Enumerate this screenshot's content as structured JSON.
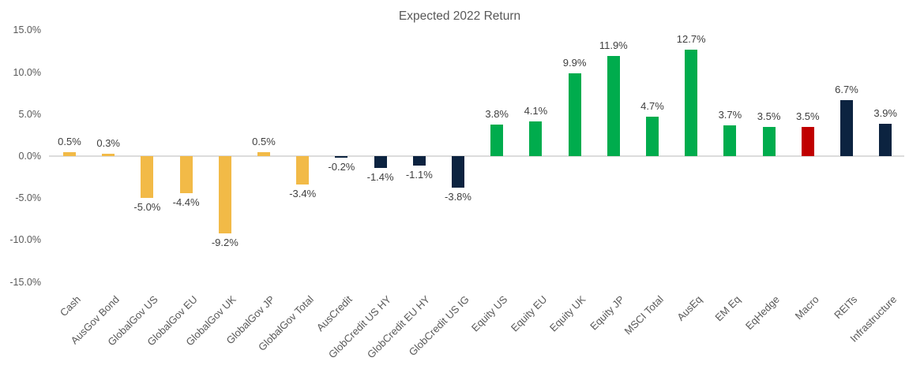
{
  "title": "Expected 2022 Return",
  "chart_data": {
    "type": "bar",
    "title": "Expected 2022 Return",
    "categories": [
      "Cash",
      "AusGov Bond",
      "GlobalGov US",
      "GlobalGov EU",
      "GlobalGov UK",
      "GlobalGov JP",
      "GlobalGov Total",
      "AusCredit",
      "GlobCredit US HY",
      "GlobCredit EU HY",
      "GlobCredit US IG",
      "Equity US",
      "Equity EU",
      "Equity UK",
      "Equity JP",
      "MSCI Total",
      "AusEq",
      "EM Eq",
      "EqHedge",
      "Macro",
      "REITs",
      "Infrastructure"
    ],
    "values": [
      0.5,
      0.3,
      -5.0,
      -4.4,
      -9.2,
      0.5,
      -3.4,
      -0.2,
      -1.4,
      -1.1,
      -3.8,
      3.8,
      4.1,
      9.9,
      11.9,
      4.7,
      12.7,
      3.7,
      3.5,
      3.5,
      6.7,
      3.9
    ],
    "value_labels": [
      "0.5%",
      "0.3%",
      "-5.0%",
      "-4.4%",
      "-9.2%",
      "0.5%",
      "-3.4%",
      "-0.2%",
      "-1.4%",
      "-1.1%",
      "-3.8%",
      "3.8%",
      "4.1%",
      "9.9%",
      "11.9%",
      "4.7%",
      "12.7%",
      "3.7%",
      "3.5%",
      "3.5%",
      "6.7%",
      "3.9%"
    ],
    "bar_colors": [
      "#F2BA47",
      "#F2BA47",
      "#F2BA47",
      "#F2BA47",
      "#F2BA47",
      "#F2BA47",
      "#F2BA47",
      "#0C2340",
      "#0C2340",
      "#0C2340",
      "#0C2340",
      "#00AC4D",
      "#00AC4D",
      "#00AC4D",
      "#00AC4D",
      "#00AC4D",
      "#00AC4D",
      "#00AC4D",
      "#00AC4D",
      "#C00000",
      "#0C2340",
      "#0C2340"
    ],
    "color_legend": {
      "gold": "#F2BA47",
      "navy": "#0C2340",
      "green": "#00AC4D",
      "red": "#C00000"
    },
    "y_axis": {
      "tick_values": [
        15,
        10,
        5,
        0,
        -5,
        -10,
        -15
      ],
      "tick_labels": [
        "15.0%",
        "10.0%",
        "5.0%",
        "0.0%",
        "-5.0%",
        "-10.0%",
        "-15.0%"
      ]
    },
    "ylim": [
      -15,
      15
    ],
    "grid": false,
    "legend": "none",
    "xlabel": "",
    "ylabel": ""
  }
}
